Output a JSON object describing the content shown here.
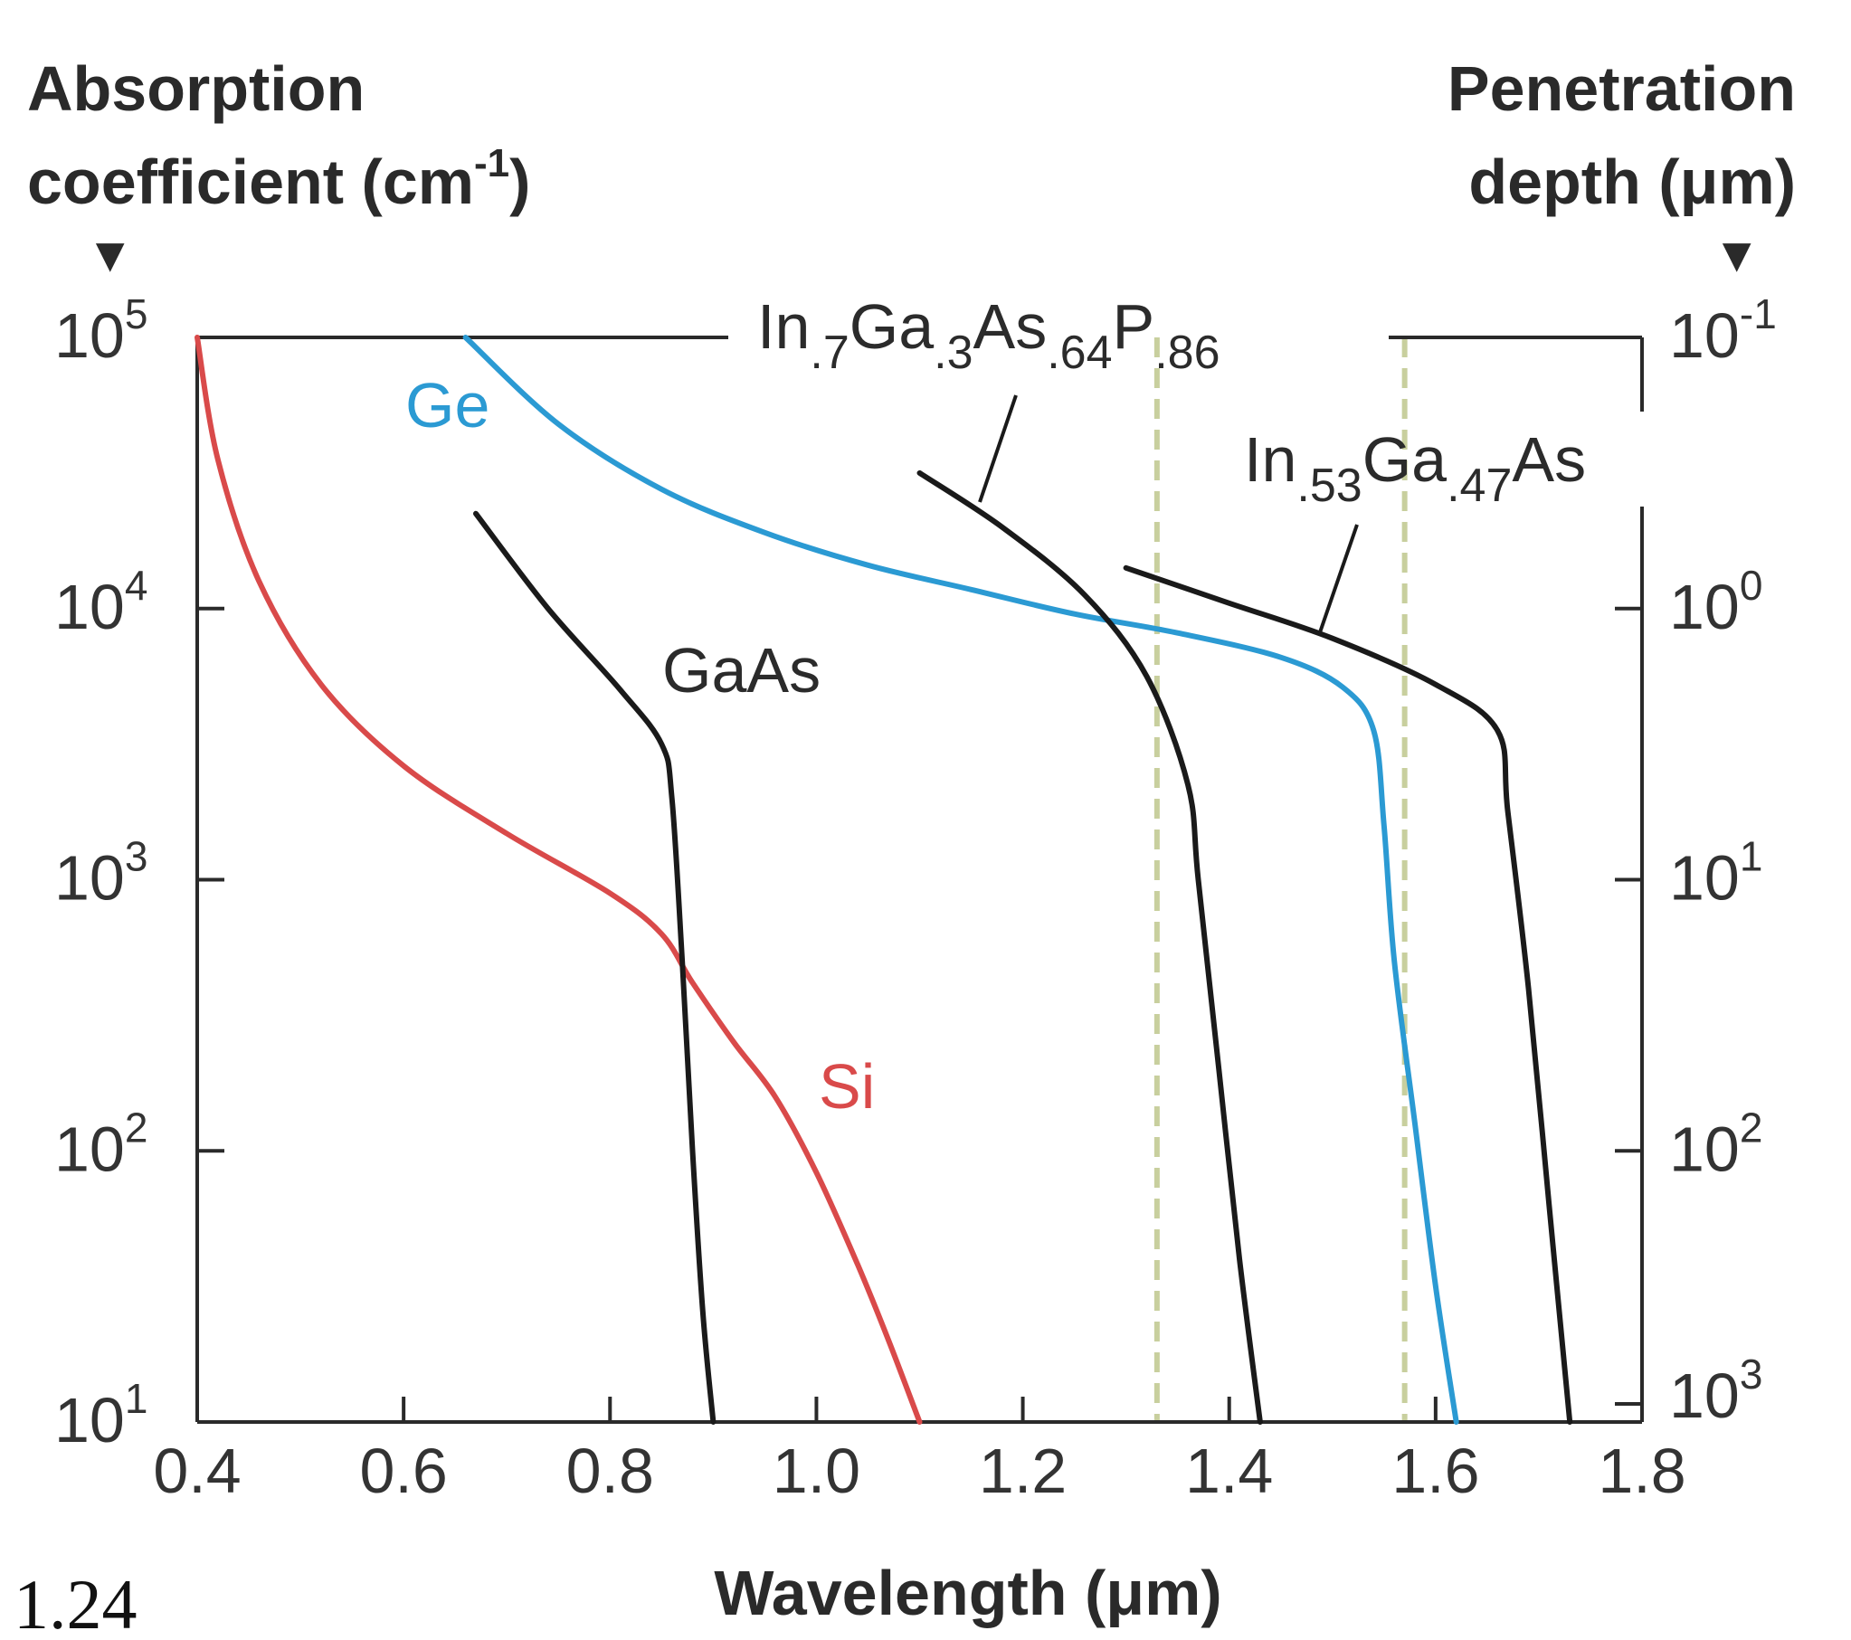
{
  "figure_number": "1.24",
  "chart_data": {
    "type": "line",
    "title": "",
    "xlabel": "Wavelength (μm)",
    "xlim": [
      0.4,
      1.8
    ],
    "x_ticks": [
      {
        "value": 0.4,
        "label": "0.4"
      },
      {
        "value": 0.6,
        "label": "0.6"
      },
      {
        "value": 0.8,
        "label": "0.8"
      },
      {
        "value": 1.0,
        "label": "1.0"
      },
      {
        "value": 1.2,
        "label": "1.2"
      },
      {
        "value": 1.4,
        "label": "1.4"
      },
      {
        "value": 1.6,
        "label": "1.6"
      },
      {
        "value": 1.8,
        "label": "1.8"
      }
    ],
    "ylabel_left": {
      "line1": "Absorption",
      "line2": "coefficient (cm",
      "sup": "-1",
      "close": ")",
      "marker": "▼"
    },
    "ylabel_right": {
      "line1": "Penetration",
      "line2": "depth (μm)",
      "marker": "▼"
    },
    "y_scale": "log",
    "ylim_log10": [
      1,
      5
    ],
    "y_ticks_left": [
      {
        "log": 5,
        "base": "10",
        "exp": "5"
      },
      {
        "log": 4,
        "base": "10",
        "exp": "4"
      },
      {
        "log": 3,
        "base": "10",
        "exp": "3"
      },
      {
        "log": 2,
        "base": "10",
        "exp": "2"
      },
      {
        "log": 1,
        "base": "10",
        "exp": "1"
      }
    ],
    "y_ticks_right": [
      {
        "log": 5,
        "base": "10",
        "exp": "-1"
      },
      {
        "log": 4,
        "base": "10",
        "exp": "0"
      },
      {
        "log": 3,
        "base": "10",
        "exp": "1"
      },
      {
        "log": 2,
        "base": "10",
        "exp": "2"
      },
      {
        "log": 1,
        "base": "10",
        "exp": "3"
      }
    ],
    "series": [
      {
        "name": "Si",
        "color": "#d94a4a",
        "x": [
          0.4,
          0.42,
          0.46,
          0.52,
          0.6,
          0.7,
          0.8,
          0.85,
          0.88,
          0.92,
          0.96,
          1.0,
          1.04,
          1.07,
          1.1
        ],
        "y_log": [
          5.0,
          4.55,
          4.1,
          3.72,
          3.42,
          3.17,
          2.95,
          2.8,
          2.62,
          2.4,
          2.2,
          1.92,
          1.58,
          1.3,
          1.0
        ]
      },
      {
        "name": "Ge",
        "color": "#2b9ad3",
        "x": [
          0.66,
          0.75,
          0.85,
          0.95,
          1.05,
          1.15,
          1.25,
          1.35,
          1.45,
          1.51,
          1.54,
          1.55,
          1.56,
          1.58,
          1.6,
          1.62
        ],
        "y_log": [
          5.0,
          4.68,
          4.44,
          4.28,
          4.16,
          4.07,
          3.98,
          3.91,
          3.82,
          3.71,
          3.55,
          3.2,
          2.7,
          2.1,
          1.5,
          1.0
        ]
      },
      {
        "name": "GaAs",
        "color": "#1a1a1a",
        "x": [
          0.67,
          0.74,
          0.81,
          0.85,
          0.86,
          0.87,
          0.88,
          0.89,
          0.9
        ],
        "y_log": [
          4.35,
          4.0,
          3.7,
          3.5,
          3.3,
          2.7,
          2.0,
          1.4,
          1.0
        ]
      },
      {
        "name": "In.7Ga.3As.64P.86",
        "color": "#1a1a1a",
        "x": [
          1.1,
          1.18,
          1.26,
          1.32,
          1.36,
          1.37,
          1.39,
          1.41,
          1.43
        ],
        "y_log": [
          4.5,
          4.3,
          4.05,
          3.75,
          3.35,
          3.0,
          2.3,
          1.6,
          1.0
        ]
      },
      {
        "name": "In.53Ga.47As",
        "color": "#1a1a1a",
        "x": [
          1.3,
          1.4,
          1.5,
          1.6,
          1.66,
          1.67,
          1.69,
          1.71,
          1.73
        ],
        "y_log": [
          4.15,
          4.02,
          3.89,
          3.72,
          3.55,
          3.25,
          2.6,
          1.8,
          1.0
        ]
      }
    ],
    "reference_lines": [
      {
        "x": 1.33,
        "style": "dashed",
        "color": "#c8cf9e"
      },
      {
        "x": 1.57,
        "style": "dashed",
        "color": "#c8cf9e"
      }
    ],
    "annotations": {
      "ge": "Ge",
      "si": "Si",
      "gaas": "GaAs",
      "ingaasp": {
        "p1": "In",
        "s1": ".7",
        "p2": "Ga",
        "s2": ".3",
        "p3": "As",
        "s3": ".64",
        "p4": "P",
        "s4": ".86"
      },
      "ingaas": {
        "p1": "In",
        "s1": ".53",
        "p2": "Ga",
        "s2": ".47",
        "p3": "As"
      }
    }
  }
}
